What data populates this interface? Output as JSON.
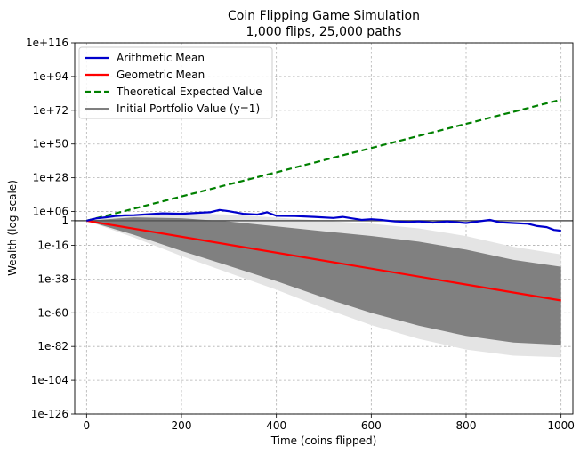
{
  "chart_data": {
    "type": "line",
    "title": "Coin Flipping Game Simulation",
    "subtitle": "1,000 flips, 25,000 paths",
    "xlabel": "Time (coins flipped)",
    "ylabel": "Wealth (log scale)",
    "y_scale": "log10",
    "xlim": [
      -25,
      1025
    ],
    "ylim_log10": [
      -126,
      116
    ],
    "grid": true,
    "legend_position": "top-left",
    "x_ticks": [
      {
        "value": 0,
        "label": "0"
      },
      {
        "value": 200,
        "label": "200"
      },
      {
        "value": 400,
        "label": "400"
      },
      {
        "value": 600,
        "label": "600"
      },
      {
        "value": 800,
        "label": "800"
      },
      {
        "value": 1000,
        "label": "1000"
      }
    ],
    "y_ticks": [
      {
        "log10": 116,
        "label": "1e+116"
      },
      {
        "log10": 94,
        "label": "1e+94"
      },
      {
        "log10": 72,
        "label": "1e+72"
      },
      {
        "log10": 50,
        "label": "1e+50"
      },
      {
        "log10": 28,
        "label": "1e+28"
      },
      {
        "log10": 6,
        "label": "1e+06"
      },
      {
        "log10": 0,
        "label": "1"
      },
      {
        "log10": -16,
        "label": "1e-16"
      },
      {
        "log10": -38,
        "label": "1e-38"
      },
      {
        "log10": -60,
        "label": "1e-60"
      },
      {
        "log10": -82,
        "label": "1e-82"
      },
      {
        "log10": -104,
        "label": "1e-104"
      },
      {
        "log10": -126,
        "label": "1e-126"
      }
    ],
    "series": [
      {
        "name": "Arithmetic Mean",
        "color": "#0000cc",
        "style": "solid",
        "points_log10": [
          [
            0,
            0
          ],
          [
            20,
            1.5
          ],
          [
            40,
            2.2
          ],
          [
            60,
            3.0
          ],
          [
            80,
            3.5
          ],
          [
            100,
            3.6
          ],
          [
            130,
            4.2
          ],
          [
            160,
            4.8
          ],
          [
            200,
            4.5
          ],
          [
            240,
            5.2
          ],
          [
            260,
            5.5
          ],
          [
            280,
            7.0
          ],
          [
            300,
            6.2
          ],
          [
            330,
            4.5
          ],
          [
            360,
            4.0
          ],
          [
            380,
            5.5
          ],
          [
            400,
            3.2
          ],
          [
            440,
            3.0
          ],
          [
            480,
            2.5
          ],
          [
            520,
            1.8
          ],
          [
            540,
            2.5
          ],
          [
            560,
            1.5
          ],
          [
            580,
            0.5
          ],
          [
            600,
            1.0
          ],
          [
            620,
            0.5
          ],
          [
            650,
            -0.5
          ],
          [
            680,
            -0.8
          ],
          [
            700,
            -0.5
          ],
          [
            730,
            -1.2
          ],
          [
            760,
            -0.5
          ],
          [
            800,
            -1.5
          ],
          [
            830,
            -0.3
          ],
          [
            850,
            0.5
          ],
          [
            870,
            -1.0
          ],
          [
            900,
            -1.5
          ],
          [
            930,
            -2.0
          ],
          [
            950,
            -3.5
          ],
          [
            970,
            -4.2
          ],
          [
            985,
            -6.0
          ],
          [
            1000,
            -6.5
          ]
        ]
      },
      {
        "name": "Geometric Mean",
        "color": "#ff0000",
        "style": "solid",
        "points_log10": [
          [
            0,
            0
          ],
          [
            1000,
            -52
          ]
        ]
      },
      {
        "name": "Theoretical Expected Value",
        "color": "#008000",
        "style": "dashed",
        "points_log10": [
          [
            0,
            0
          ],
          [
            1000,
            79
          ]
        ]
      },
      {
        "name": "Initial Portfolio Value (y=1)",
        "color": "#555555",
        "style": "solid",
        "points_log10": [
          [
            -25,
            0
          ],
          [
            1025,
            0
          ]
        ]
      }
    ],
    "simulated_paths_band": {
      "color": "#808080",
      "points_log10": [
        {
          "x": 0,
          "low": 0,
          "high": 0
        },
        {
          "x": 100,
          "low": -11,
          "high": 4
        },
        {
          "x": 200,
          "low": -23,
          "high": 5
        },
        {
          "x": 300,
          "low": -34,
          "high": 4
        },
        {
          "x": 400,
          "low": -45,
          "high": 2
        },
        {
          "x": 500,
          "low": -57,
          "high": 0
        },
        {
          "x": 600,
          "low": -68,
          "high": -2
        },
        {
          "x": 700,
          "low": -77,
          "high": -5
        },
        {
          "x": 800,
          "low": -84,
          "high": -10
        },
        {
          "x": 900,
          "low": -88,
          "high": -17
        },
        {
          "x": 1000,
          "low": -89,
          "high": -22
        }
      ]
    }
  }
}
